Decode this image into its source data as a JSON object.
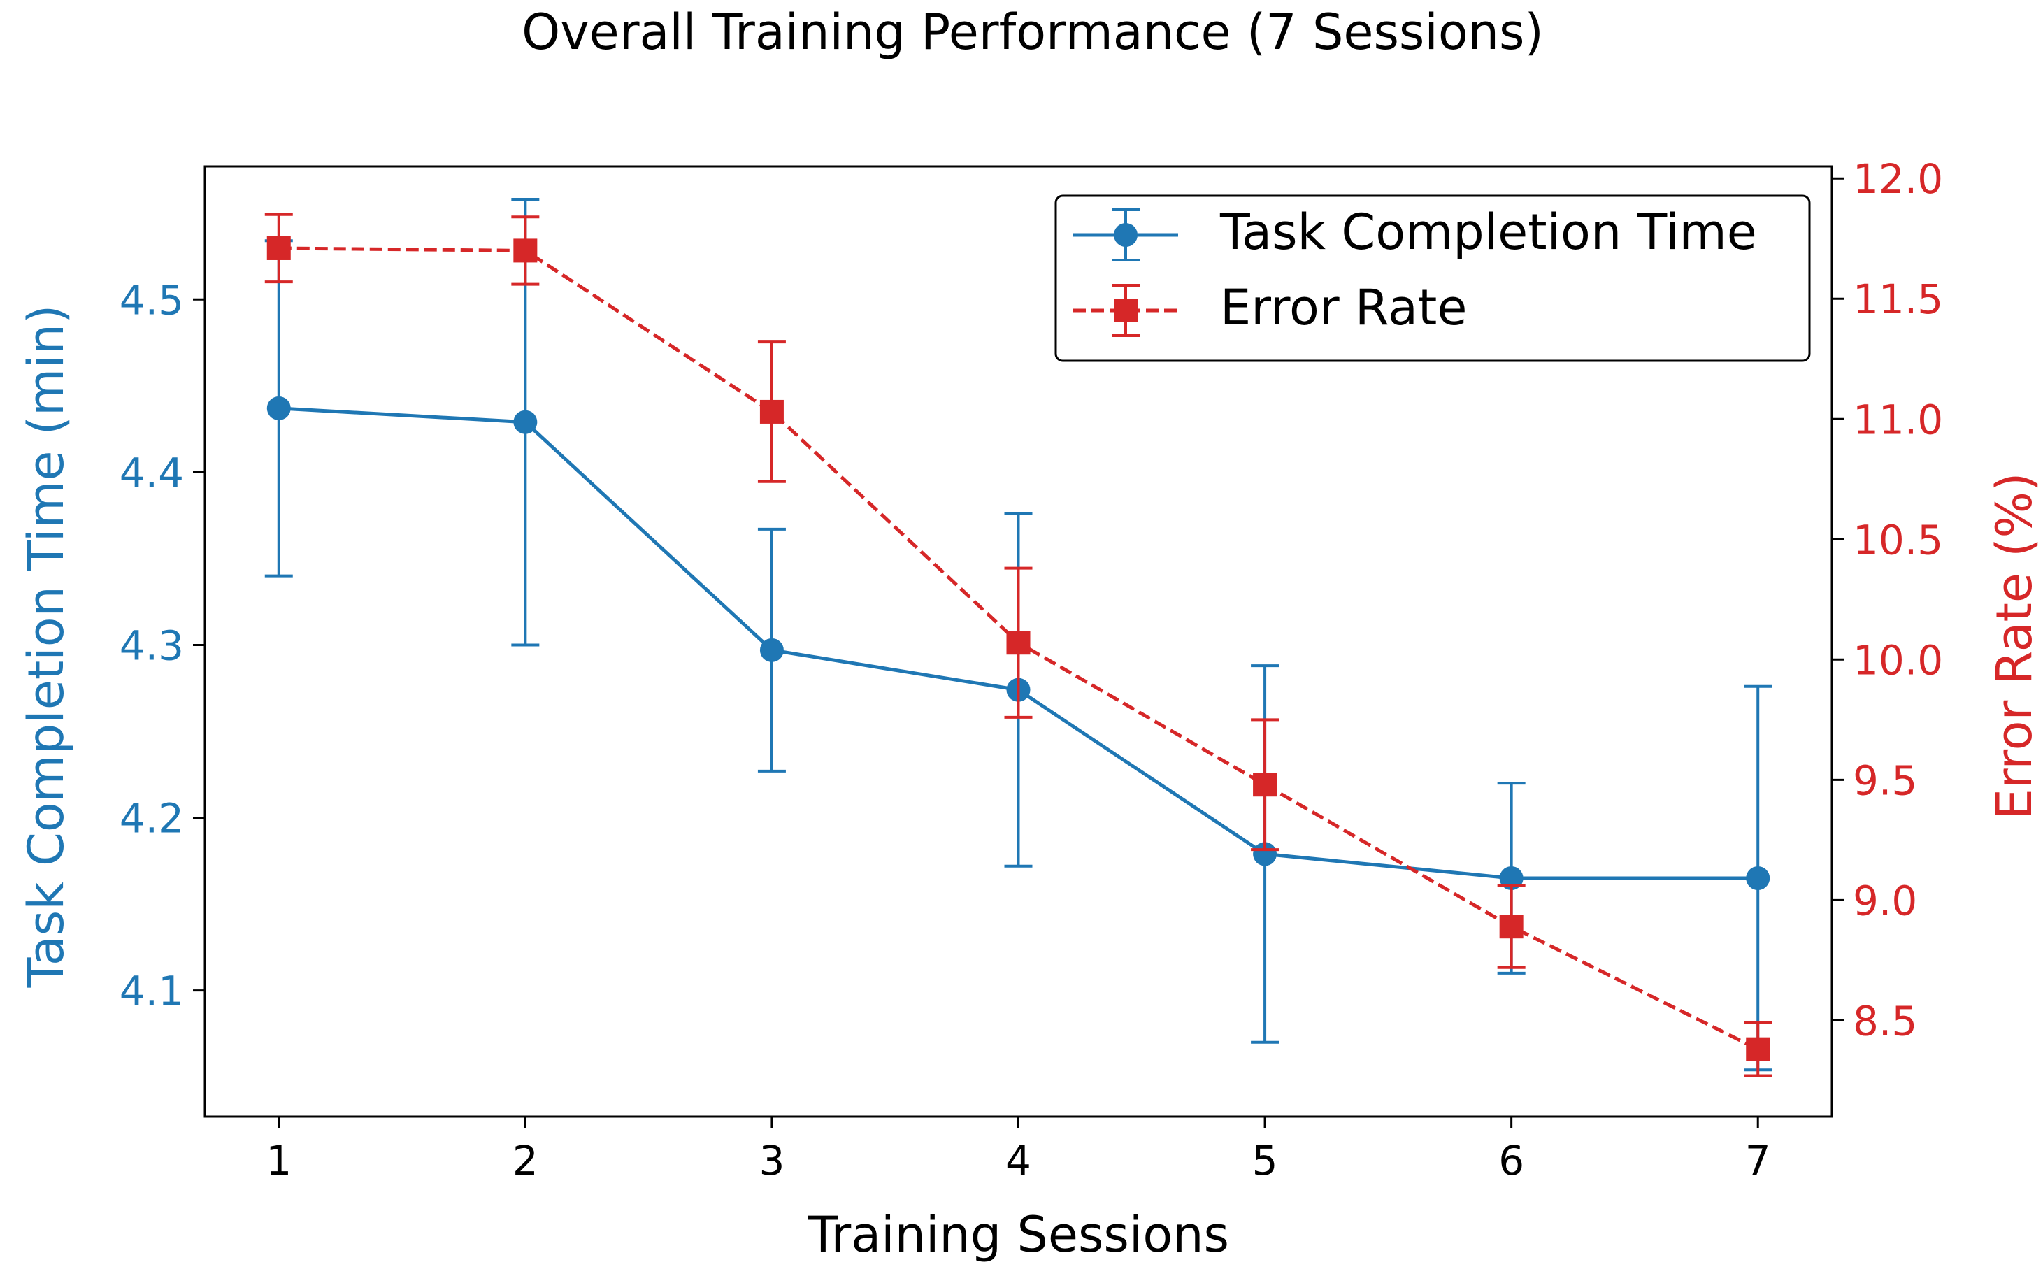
{
  "colors": {
    "left": "#1f77b4",
    "right": "#d62728",
    "axis": "#000000",
    "background": "#ffffff"
  },
  "chart_data": {
    "type": "line",
    "title": "Overall Training Performance (7 Sessions)",
    "xlabel": "Training Sessions",
    "ylabel_left": "Task Completion Time (min)",
    "ylabel_right": "Error Rate (%)",
    "x": [
      1,
      2,
      3,
      4,
      5,
      6,
      7
    ],
    "x_ticks": [
      "1",
      "2",
      "3",
      "4",
      "5",
      "6",
      "7"
    ],
    "xlim": [
      0.7,
      7.3
    ],
    "left_axis": {
      "ylim": [
        4.027,
        4.577
      ],
      "ticks": [
        4.1,
        4.2,
        4.3,
        4.4,
        4.5
      ],
      "tick_labels": [
        "4.1",
        "4.2",
        "4.3",
        "4.4",
        "4.5"
      ]
    },
    "right_axis": {
      "ylim": [
        8.1,
        12.05
      ],
      "ticks": [
        8.5,
        9.0,
        9.5,
        10.0,
        10.5,
        11.0,
        11.5,
        12.0
      ],
      "tick_labels": [
        "8.5",
        "9.0",
        "9.5",
        "10.0",
        "10.5",
        "11.0",
        "11.5",
        "12.0"
      ]
    },
    "series": [
      {
        "name": "Task Completion Time",
        "axis": "left",
        "marker": "circle",
        "linestyle": "solid",
        "values": [
          4.437,
          4.429,
          4.297,
          4.274,
          4.179,
          4.165,
          4.165
        ],
        "errors": [
          0.097,
          0.129,
          0.07,
          0.102,
          0.109,
          0.055,
          0.111
        ]
      },
      {
        "name": "Error Rate",
        "axis": "right",
        "marker": "square",
        "linestyle": "dashed",
        "values": [
          11.71,
          11.7,
          11.03,
          10.07,
          9.48,
          8.89,
          8.38
        ],
        "errors": [
          0.14,
          0.14,
          0.29,
          0.31,
          0.27,
          0.17,
          0.11
        ]
      }
    ],
    "legend": "top-right",
    "grid": false
  }
}
